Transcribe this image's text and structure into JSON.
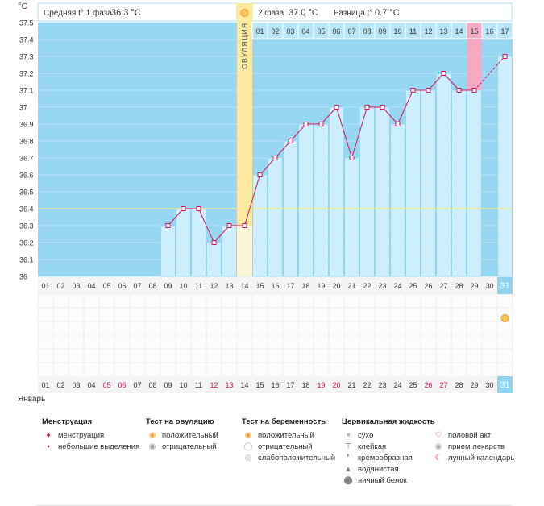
{
  "header": {
    "unit": "°C",
    "phase1_label": "Средняя t° 1 фаза",
    "phase1_value": "36.3 °C",
    "phase2_label": "2 фаза",
    "phase2_value": "37.0 °C",
    "diff_label": "Разница t°",
    "diff_value": "0.7 °C",
    "ovulation_label": "ОВУЛЯЦИЯ"
  },
  "month_label": "Январь",
  "colors": {
    "bg_blue": "#97d7f2",
    "bar_fill": "#cdeefc",
    "bar_stroke": "#7cc6e8",
    "ovulation": "#fbe9a0",
    "ovulation_bar": "#fdf6d6",
    "line": "#d4145a",
    "coverline": "#f5ec7a",
    "highlight": "#f5a9c3",
    "grid": "#eeeeee",
    "red_text": "#d4145a"
  },
  "chart_data": {
    "type": "line",
    "title": "",
    "ylabel": "°C",
    "xlabel": "Январь",
    "ylim": [
      36,
      37.5
    ],
    "yticks": [
      "36",
      "36.1",
      "36.2",
      "36.3",
      "36.4",
      "36.5",
      "36.6",
      "36.7",
      "36.8",
      "36.9",
      "37",
      "37.1",
      "37.2",
      "37.3",
      "37.4",
      "37.5"
    ],
    "coverline": 36.4,
    "ovulation_day": 14,
    "days": [
      "01",
      "02",
      "03",
      "04",
      "05",
      "06",
      "07",
      "08",
      "09",
      "10",
      "11",
      "12",
      "13",
      "14",
      "15",
      "16",
      "17",
      "18",
      "19",
      "20",
      "21",
      "22",
      "23",
      "24",
      "25",
      "26",
      "27",
      "28",
      "29",
      "30",
      "31"
    ],
    "bottom_days": [
      "01",
      "02",
      "03",
      "04",
      "05",
      "06",
      "07",
      "08",
      "09",
      "10",
      "11",
      "12",
      "13",
      "14",
      "15",
      "16",
      "17",
      "18",
      "19",
      "20",
      "21",
      "22",
      "23",
      "24",
      "25",
      "26",
      "27",
      "28",
      "29",
      "30",
      "31"
    ],
    "red_days_bottom": [
      "05",
      "06",
      "12",
      "13",
      "19",
      "20",
      "26",
      "27"
    ],
    "cycle_days_phase2": [
      "01",
      "02",
      "03",
      "04",
      "05",
      "06",
      "07",
      "08",
      "09",
      "10",
      "11",
      "12",
      "13",
      "14",
      "15",
      "16",
      "17"
    ],
    "highlight_cycle_day": "15",
    "current_day": "31",
    "temperatures": [
      {
        "day": 9,
        "t": 36.3
      },
      {
        "day": 10,
        "t": 36.4
      },
      {
        "day": 11,
        "t": 36.4
      },
      {
        "day": 12,
        "t": 36.2
      },
      {
        "day": 13,
        "t": 36.3
      },
      {
        "day": 14,
        "t": 36.3
      },
      {
        "day": 15,
        "t": 36.6
      },
      {
        "day": 16,
        "t": 36.7
      },
      {
        "day": 17,
        "t": 36.8
      },
      {
        "day": 18,
        "t": 36.9
      },
      {
        "day": 19,
        "t": 36.9
      },
      {
        "day": 20,
        "t": 37.0
      },
      {
        "day": 21,
        "t": 36.7
      },
      {
        "day": 22,
        "t": 37.0
      },
      {
        "day": 23,
        "t": 37.0
      },
      {
        "day": 24,
        "t": 36.9
      },
      {
        "day": 25,
        "t": 37.1
      },
      {
        "day": 26,
        "t": 37.1
      },
      {
        "day": 27,
        "t": 37.2
      },
      {
        "day": 28,
        "t": 37.1
      },
      {
        "day": 29,
        "t": 37.1
      },
      {
        "day": 31,
        "t": 37.3
      }
    ]
  },
  "legend": {
    "menstruation": {
      "title": "Менструация",
      "items": [
        {
          "icon": "drop-icon",
          "label": "менструация"
        },
        {
          "icon": "small-drop-icon",
          "label": "небольшие выделения"
        }
      ]
    },
    "ovulation_test": {
      "title": "Тест на овуляцию",
      "items": [
        {
          "icon": "sun-positive-icon",
          "label": "положительный"
        },
        {
          "icon": "sun-negative-icon",
          "label": "отрицательный"
        }
      ]
    },
    "pregnancy_test": {
      "title": "Тест на беременность",
      "items": [
        {
          "icon": "preg-positive-icon",
          "label": "положительный"
        },
        {
          "icon": "preg-negative-icon",
          "label": "отрицательный"
        },
        {
          "icon": "preg-weak-icon",
          "label": "слабоположительный"
        }
      ]
    },
    "cervical": {
      "title": "Цервикальная жидкость",
      "items": [
        {
          "icon": "dry-icon",
          "label": "сухо"
        },
        {
          "icon": "sticky-icon",
          "label": "клейкая"
        },
        {
          "icon": "creamy-icon",
          "label": "кремообразная"
        },
        {
          "icon": "watery-icon",
          "label": "водянистая"
        },
        {
          "icon": "eggwhite-icon",
          "label": "яичный белок"
        }
      ]
    },
    "other": {
      "items": [
        {
          "icon": "heart-icon",
          "label": "половой акт"
        },
        {
          "icon": "pill-icon",
          "label": "прием лекарств"
        },
        {
          "icon": "moon-icon",
          "label": "лунный календарь"
        }
      ]
    }
  }
}
